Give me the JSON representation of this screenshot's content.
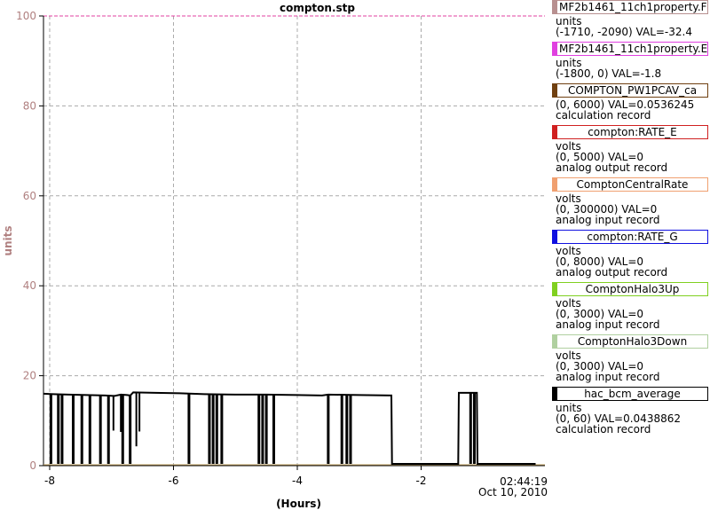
{
  "chart_data": {
    "type": "line",
    "title": "compton.stp",
    "xlabel": "(Hours)",
    "ylabel": "units",
    "xlim": [
      -8.1,
      0
    ],
    "ylim": [
      0,
      100
    ],
    "xticks": [
      -8,
      -6,
      -4,
      -2
    ],
    "yticks": [
      0,
      20,
      40,
      60,
      80,
      100
    ],
    "x_end_time": "02:44:19",
    "x_end_date": "Oct 10, 2010",
    "grid": true,
    "series": [
      {
        "name": "hac_bcm_average",
        "color": "#000000",
        "points": [
          [
            -8.1,
            16.0
          ],
          [
            -7.95,
            15.9
          ],
          [
            -7.7,
            15.8
          ],
          [
            -7.4,
            15.7
          ],
          [
            -7.1,
            15.6
          ],
          [
            -6.95,
            15.5
          ],
          [
            -6.85,
            15.8
          ],
          [
            -6.75,
            15.7
          ],
          [
            -6.7,
            15.6
          ],
          [
            -6.65,
            16.3
          ],
          [
            -6.3,
            16.2
          ],
          [
            -5.9,
            16.1
          ],
          [
            -5.5,
            15.9
          ],
          [
            -5.0,
            15.8
          ],
          [
            -4.5,
            15.8
          ],
          [
            -4.0,
            15.7
          ],
          [
            -3.6,
            15.6
          ],
          [
            -3.5,
            15.8
          ],
          [
            -3.0,
            15.7
          ],
          [
            -2.48,
            15.6
          ],
          [
            -2.47,
            0.4
          ],
          [
            -1.4,
            0.4
          ],
          [
            -1.39,
            16.2
          ],
          [
            -1.1,
            16.2
          ],
          [
            -1.09,
            0.4
          ],
          [
            -0.15,
            0.4
          ]
        ],
        "drops": [
          [
            -7.98,
            0.4
          ],
          [
            -7.86,
            0.4
          ],
          [
            -7.8,
            0.4
          ],
          [
            -7.62,
            0.4
          ],
          [
            -7.48,
            0.4
          ],
          [
            -7.35,
            0.4
          ],
          [
            -7.18,
            0.4
          ],
          [
            -7.05,
            0.4
          ],
          [
            -6.82,
            0.4
          ],
          [
            -6.7,
            0.4
          ],
          [
            -5.75,
            0.4
          ],
          [
            -5.42,
            0.4
          ],
          [
            -5.36,
            0.4
          ],
          [
            -5.3,
            0.4
          ],
          [
            -5.22,
            0.4
          ],
          [
            -4.62,
            0.4
          ],
          [
            -4.56,
            0.4
          ],
          [
            -4.5,
            0.4
          ],
          [
            -4.38,
            0.4
          ],
          [
            -3.5,
            0.4
          ],
          [
            -3.28,
            0.4
          ],
          [
            -3.2,
            0.4
          ],
          [
            -3.14,
            0.4
          ],
          [
            -1.2,
            0.4
          ],
          [
            -1.14,
            0.4
          ]
        ],
        "dips": [
          [
            -6.97,
            7.8
          ],
          [
            -6.85,
            7.5
          ],
          [
            -6.55,
            7.6
          ],
          [
            -6.6,
            4.3
          ]
        ]
      }
    ]
  },
  "legend": [
    {
      "name": "MF2b1461_11ch1property.F",
      "color": "#b89090",
      "align": "left",
      "lines": [
        "units",
        "(-1710, -2090) VAL=-32.4"
      ]
    },
    {
      "name": "MF2b1461_11ch1property.E",
      "color": "#e040e0",
      "align": "left",
      "lines": [
        "units",
        "(-1800, 0)  VAL=-1.8"
      ]
    },
    {
      "name": "COMPTON_PW1PCAV_ca",
      "color": "#704010",
      "align": "center",
      "lines": [
        "(0, 6000) VAL=0.0536245",
        "calculation record"
      ]
    },
    {
      "name": "compton:RATE_E",
      "color": "#d02020",
      "align": "center",
      "lines": [
        "volts",
        "(0, 5000)  VAL=0",
        "analog output record"
      ]
    },
    {
      "name": "ComptonCentralRate",
      "color": "#f0a070",
      "align": "center",
      "lines": [
        "volts",
        "(0, 300000) VAL=0",
        "analog input record"
      ]
    },
    {
      "name": "compton:RATE_G",
      "color": "#1010e0",
      "align": "center",
      "lines": [
        "volts",
        "(0, 8000)  VAL=0",
        "analog output record"
      ]
    },
    {
      "name": "ComptonHalo3Up",
      "color": "#80d020",
      "align": "center",
      "lines": [
        "volts",
        "(0, 3000)  VAL=0",
        "analog input record"
      ]
    },
    {
      "name": "ComptonHalo3Down",
      "color": "#b0d0a0",
      "align": "center",
      "lines": [
        "volts",
        "(0, 3000)  VAL=0",
        "analog input record"
      ]
    },
    {
      "name": "hac_bcm_average",
      "color": "#000000",
      "align": "center",
      "lines": [
        "units",
        "(0, 60) VAL=0.0438862",
        "calculation record"
      ]
    }
  ]
}
